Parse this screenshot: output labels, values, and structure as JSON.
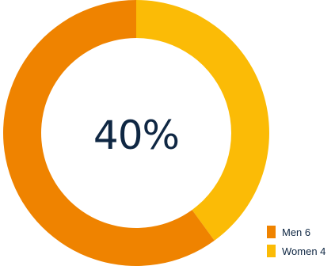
{
  "chart_data": {
    "type": "pie",
    "variant": "donut",
    "center_label": "40%",
    "series": [
      {
        "name": "Men",
        "value": 6,
        "color": "#ef8300",
        "legend_label": "Men 6"
      },
      {
        "name": "Women",
        "value": 4,
        "color": "#fbbb06",
        "legend_label": "Women 4"
      }
    ],
    "legend_position": "bottom-right"
  }
}
